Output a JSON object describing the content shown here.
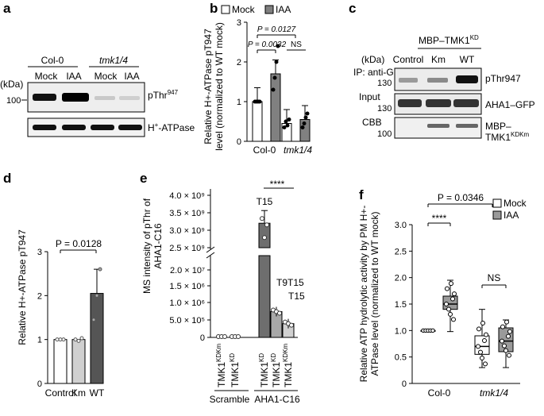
{
  "panels": {
    "a": {
      "letter": "a",
      "groups": [
        "Col-0",
        "tmk1/4"
      ],
      "treatments": [
        "Mock",
        "IAA",
        "Mock",
        "IAA"
      ],
      "kda_label": "(kDa)",
      "marker": "100",
      "band_labels": [
        "pThr947",
        "H+-ATPase"
      ]
    },
    "b": {
      "letter": "b",
      "legend": [
        "Mock",
        "IAA"
      ],
      "ylabel_lines": [
        "Relative H+-ATPase pT947",
        "level (normalized to WT mock)"
      ],
      "xlabels": [
        "Col-0",
        "tmk1/4"
      ],
      "yticks": [
        "0",
        "1",
        "2",
        "3"
      ],
      "annotations": [
        "P = 0.0127",
        "P = 0.0032",
        "NS"
      ]
    },
    "c": {
      "letter": "c",
      "construct": "MBP–TMK1KD",
      "kda_label": "(kDa)",
      "lanes": [
        "Control",
        "Km",
        "WT"
      ],
      "row_labels": [
        "IP: anti-GFP",
        "Input",
        "CBB"
      ],
      "markers": [
        "130",
        "130",
        "100"
      ],
      "band_labels": [
        "pThr947",
        "AHA1–GFP",
        "MBP–",
        "TMK1KDKm"
      ]
    },
    "d": {
      "letter": "d",
      "ylabel": "Relative H+-ATPase pT947",
      "yticks": [
        "0",
        "1",
        "2",
        "3"
      ],
      "xlabels": [
        "Control",
        "Km",
        "WT"
      ],
      "annotation": "P = 0.0128"
    },
    "e": {
      "letter": "e",
      "ylabel_lines": [
        "MS intensity of pThr of",
        "AHA1-C16"
      ],
      "yticks_upper": [
        "4.0 × 10⁹",
        "3.5 × 10⁹",
        "3.0 × 10⁹",
        "2.5 × 10⁹"
      ],
      "yticks_lower": [
        "2.0 × 10⁷",
        "1.5 × 10⁶",
        "1.0 × 10⁶",
        "5.0 × 10⁵",
        "0"
      ],
      "xlabels": [
        "TMK1KDKm",
        "TMK1KD",
        "TMK1KD",
        "TMK1KD",
        "TMK1KDKm"
      ],
      "group_labels": [
        "Scramble",
        "AHA1-C16"
      ],
      "bar_labels": [
        "T15",
        "T9T15",
        "T15"
      ],
      "significance": "****"
    },
    "f": {
      "letter": "f",
      "legend": [
        "Mock",
        "IAA"
      ],
      "ylabel_lines": [
        "Relative ATP hydrolytic activity by PM H+-",
        "ATPase level (normalized to WT mock)"
      ],
      "yticks": [
        "0",
        "0.5",
        "1.0",
        "1.5",
        "2.0",
        "2.5",
        "3.0"
      ],
      "xlabels": [
        "Col-0",
        "tmk1/4"
      ],
      "annotations": [
        "P = 0.0346",
        "****",
        "NS"
      ]
    }
  },
  "chart_data": [
    {
      "type": "bar",
      "panel": "b",
      "categories": [
        "Col-0",
        "tmk1/4"
      ],
      "series": [
        {
          "name": "Mock",
          "values": [
            1.0,
            0.45
          ],
          "points": [
            [
              1,
              1,
              1,
              1
            ],
            [
              0.35,
              0.5,
              0.4,
              0.55
            ]
          ]
        },
        {
          "name": "IAA",
          "values": [
            1.7,
            0.55
          ],
          "points": [
            [
              1.3,
              1.6,
              2.0,
              2.4
            ],
            [
              0.35,
              0.45,
              0.6,
              0.7
            ]
          ]
        }
      ],
      "ylim": [
        0,
        3
      ],
      "colors": {
        "Mock": "#ffffff",
        "IAA": "#808080"
      }
    },
    {
      "type": "bar",
      "panel": "d",
      "categories": [
        "Control",
        "Km",
        "WT"
      ],
      "values": [
        1.0,
        1.0,
        2.05
      ],
      "points": [
        [
          1,
          1,
          1
        ],
        [
          1.0,
          0.97,
          1.03
        ],
        [
          1.45,
          2.0,
          2.6
        ]
      ],
      "ylim": [
        0,
        3
      ],
      "colors": [
        "#ffffff",
        "#d0d0d0",
        "#555555"
      ]
    },
    {
      "type": "bar",
      "panel": "e",
      "categories": [
        "Scramble TMK1KDKm",
        "Scramble TMK1KD",
        "AHA1-C16 TMK1KD",
        "AHA1-C16 TMK1KD",
        "AHA1-C16 TMK1KDKm"
      ],
      "values": [
        0,
        0,
        3200000000,
        750000,
        400000
      ],
      "colors": [
        "#ffffff",
        "#ffffff",
        "#6e6e6e",
        "#a8a8a8",
        "#d0d0d0"
      ]
    },
    {
      "type": "box",
      "panel": "f",
      "categories": [
        "Col-0",
        "tmk1/4"
      ],
      "series": [
        {
          "name": "Mock",
          "boxes": [
            {
              "min": 1.0,
              "q1": 1.0,
              "median": 1.0,
              "q3": 1.0,
              "max": 1.0
            },
            {
              "min": 0.3,
              "q1": 0.55,
              "median": 0.7,
              "q3": 0.9,
              "max": 1.4
            }
          ]
        },
        {
          "name": "IAA",
          "boxes": [
            {
              "min": 0.98,
              "q1": 1.4,
              "median": 1.5,
              "q3": 1.65,
              "max": 1.95
            },
            {
              "min": 0.3,
              "q1": 0.6,
              "median": 0.8,
              "q3": 1.05,
              "max": 1.2
            }
          ]
        }
      ],
      "ylim": [
        0,
        3.0
      ],
      "colors": {
        "Mock": "#ffffff",
        "IAA": "#9a9a9a"
      }
    }
  ]
}
